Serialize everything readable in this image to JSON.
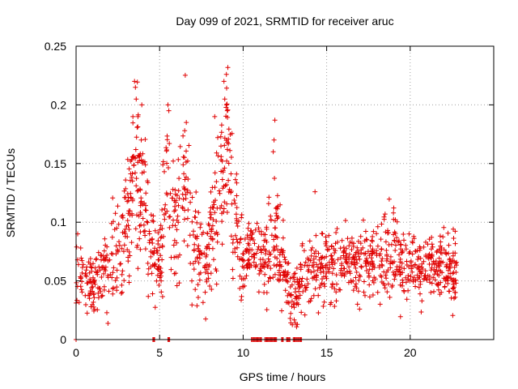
{
  "chart_data": {
    "type": "scatter",
    "title": "Day 099 of 2021, SRMTID for receiver aruc",
    "xlabel": "GPS time / hours",
    "ylabel": "SRMTID / TECUs",
    "xlim": [
      0,
      25
    ],
    "ylim": [
      0,
      0.25
    ],
    "x_ticks": [
      0,
      5,
      10,
      15,
      20
    ],
    "y_ticks": [
      0,
      0.05,
      0.1,
      0.15,
      0.2,
      0.25
    ],
    "x_tick_labels": [
      "0",
      "5",
      "10",
      "15",
      "20"
    ],
    "y_tick_labels": [
      "0",
      "0.05",
      "0.1",
      "0.15",
      "0.2",
      "0.25"
    ],
    "grid": true,
    "marker": "+",
    "marker_color": "#e00000",
    "series_name": "aruc SRMTID",
    "envelope": [
      [
        0.0,
        0.065,
        0.018
      ],
      [
        0.5,
        0.052,
        0.015
      ],
      [
        1.0,
        0.045,
        0.012
      ],
      [
        1.5,
        0.055,
        0.015
      ],
      [
        2.0,
        0.065,
        0.02
      ],
      [
        2.5,
        0.07,
        0.02
      ],
      [
        3.0,
        0.085,
        0.025
      ],
      [
        3.5,
        0.14,
        0.035
      ],
      [
        4.0,
        0.12,
        0.035
      ],
      [
        4.5,
        0.075,
        0.02
      ],
      [
        5.0,
        0.065,
        0.018
      ],
      [
        5.5,
        0.14,
        0.035
      ],
      [
        6.0,
        0.09,
        0.03
      ],
      [
        6.5,
        0.13,
        0.035
      ],
      [
        7.0,
        0.08,
        0.025
      ],
      [
        7.5,
        0.065,
        0.02
      ],
      [
        8.0,
        0.075,
        0.02
      ],
      [
        8.5,
        0.11,
        0.03
      ],
      [
        9.0,
        0.17,
        0.035
      ],
      [
        9.5,
        0.1,
        0.03
      ],
      [
        10.0,
        0.065,
        0.015
      ],
      [
        10.5,
        0.075,
        0.015
      ],
      [
        11.0,
        0.07,
        0.02
      ],
      [
        11.5,
        0.07,
        0.02
      ],
      [
        12.0,
        0.08,
        0.025
      ],
      [
        12.5,
        0.055,
        0.015
      ],
      [
        13.0,
        0.03,
        0.015
      ],
      [
        13.5,
        0.055,
        0.015
      ],
      [
        14.0,
        0.06,
        0.015
      ],
      [
        15.0,
        0.062,
        0.015
      ],
      [
        16.0,
        0.065,
        0.015
      ],
      [
        17.0,
        0.065,
        0.015
      ],
      [
        18.0,
        0.07,
        0.018
      ],
      [
        19.0,
        0.072,
        0.018
      ],
      [
        20.0,
        0.065,
        0.015
      ],
      [
        21.0,
        0.06,
        0.015
      ],
      [
        22.0,
        0.062,
        0.015
      ],
      [
        22.8,
        0.055,
        0.015
      ]
    ],
    "outliers": [
      [
        3.5,
        0.22
      ],
      [
        3.55,
        0.215
      ],
      [
        3.6,
        0.205
      ],
      [
        3.7,
        0.19
      ],
      [
        8.85,
        0.22
      ],
      [
        8.9,
        0.205
      ],
      [
        9.0,
        0.2
      ],
      [
        9.05,
        0.195
      ],
      [
        5.5,
        0.2
      ],
      [
        5.55,
        0.195
      ],
      [
        11.9,
        0.187
      ],
      [
        11.85,
        0.17
      ],
      [
        11.8,
        0.16
      ],
      [
        6.6,
        0.185
      ],
      [
        6.5,
        0.178
      ],
      [
        8.3,
        0.19
      ],
      [
        3.4,
        0.19
      ],
      [
        3.9,
        0.17
      ],
      [
        14.3,
        0.126
      ],
      [
        18.5,
        0.107
      ]
    ],
    "zero_clusters": [
      [
        0.0,
        0.0
      ],
      [
        4.6,
        4.7
      ],
      [
        5.5,
        5.6
      ],
      [
        10.5,
        11.1
      ],
      [
        11.3,
        12.0
      ],
      [
        12.3,
        12.4
      ],
      [
        12.6,
        12.8
      ],
      [
        13.0,
        13.5
      ]
    ]
  }
}
